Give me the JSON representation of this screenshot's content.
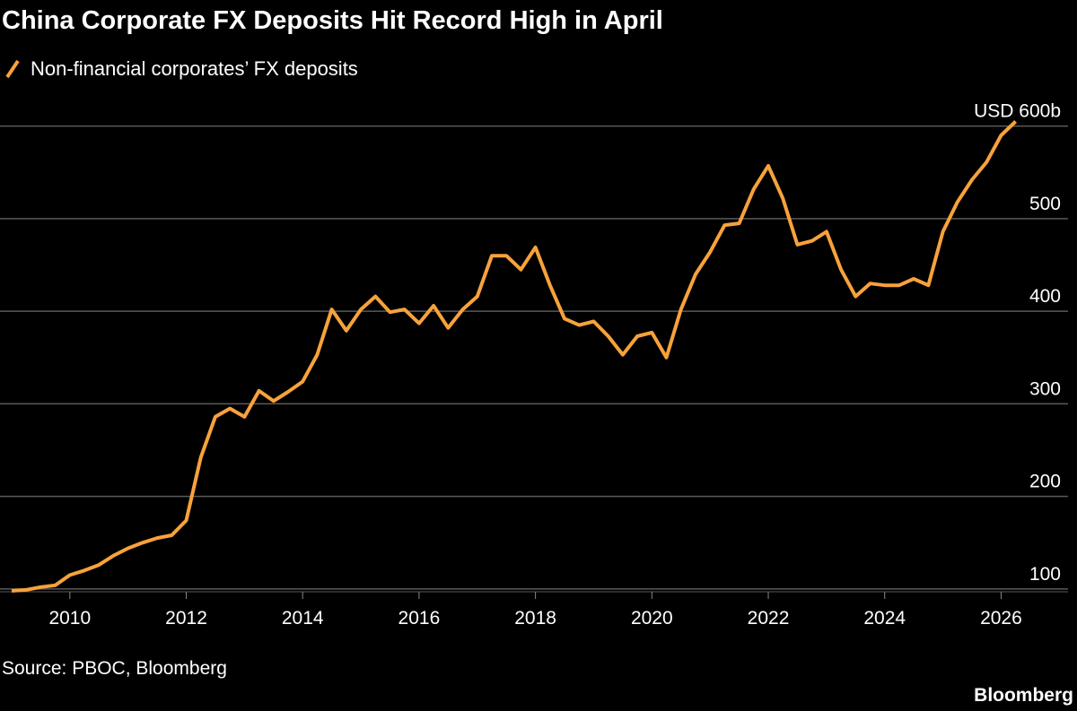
{
  "chart_data": {
    "type": "line",
    "title": "China Corporate FX Deposits Hit Record High in April",
    "source": "Source: PBOC, Bloomberg",
    "brand": "Bloomberg",
    "series": [
      {
        "name": "Non-financial corporates’ FX deposits",
        "color": "#f7a23b",
        "values": [
          98,
          99,
          102,
          104,
          115,
          120,
          126,
          136,
          144,
          150,
          155,
          158,
          174,
          242,
          286,
          295,
          286,
          314,
          303,
          313,
          324,
          353,
          402,
          379,
          402,
          416,
          399,
          402,
          387,
          406,
          382,
          402,
          416,
          460,
          460,
          445,
          469,
          428,
          392,
          385,
          389,
          373,
          353,
          373,
          377,
          350,
          402,
          440,
          464,
          493,
          495,
          532,
          557,
          522,
          472,
          476,
          486,
          445,
          416,
          430,
          428,
          428,
          435,
          428,
          486,
          518,
          542,
          561,
          590,
          605
        ]
      }
    ],
    "x": [
      2009,
      2009.25,
      2009.5,
      2009.75,
      2010,
      2010.25,
      2010.5,
      2010.75,
      2011,
      2011.25,
      2011.5,
      2011.75,
      2012,
      2012.25,
      2012.5,
      2012.75,
      2013,
      2013.25,
      2013.5,
      2013.75,
      2014,
      2014.25,
      2014.5,
      2014.75,
      2015,
      2015.25,
      2015.5,
      2015.75,
      2016,
      2016.25,
      2016.5,
      2016.75,
      2017,
      2017.25,
      2017.5,
      2017.75,
      2018,
      2018.25,
      2018.5,
      2018.75,
      2019,
      2019.25,
      2019.5,
      2019.75,
      2020,
      2020.25,
      2020.5,
      2020.75,
      2021,
      2021.25,
      2021.5,
      2021.75,
      2022,
      2022.25,
      2022.5,
      2022.75,
      2023,
      2023.25,
      2023.5,
      2023.75,
      2024,
      2024.25,
      2024.5,
      2024.75,
      2025,
      2025.25,
      2025.5,
      2025.75,
      2026,
      2026.25
    ],
    "xlim": [
      2008.8,
      2027.15
    ],
    "xticks": [
      2010,
      2012,
      2014,
      2016,
      2018,
      2020,
      2022,
      2024,
      2026
    ],
    "ylim": [
      97,
      620
    ],
    "yticks": [
      100,
      200,
      300,
      400,
      500,
      {
        "value": 600,
        "label": "USD 600b"
      }
    ],
    "grid": true
  }
}
